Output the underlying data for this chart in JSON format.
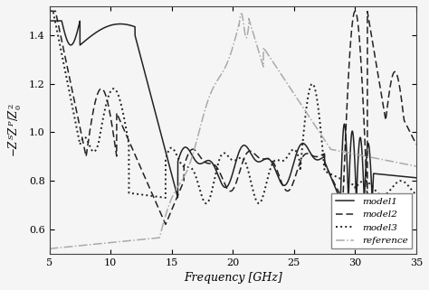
{
  "title": "",
  "xlabel": "Frequency [GHz]",
  "ylabel": "$-Z^S Z^P / Z_0^2$",
  "xlim": [
    5,
    35
  ],
  "ylim": [
    0.5,
    1.52
  ],
  "yticks": [
    0.6,
    0.8,
    1.0,
    1.2,
    1.4
  ],
  "xticks": [
    5,
    10,
    15,
    20,
    25,
    30,
    35
  ],
  "legend_labels": [
    "model1",
    "model2",
    "model3",
    "reference"
  ],
  "line_colors": [
    "#222222",
    "#222222",
    "#222222",
    "#aaaaaa"
  ],
  "background_color": "#f5f5f5",
  "figsize": [
    4.74,
    3.21
  ],
  "dpi": 100
}
